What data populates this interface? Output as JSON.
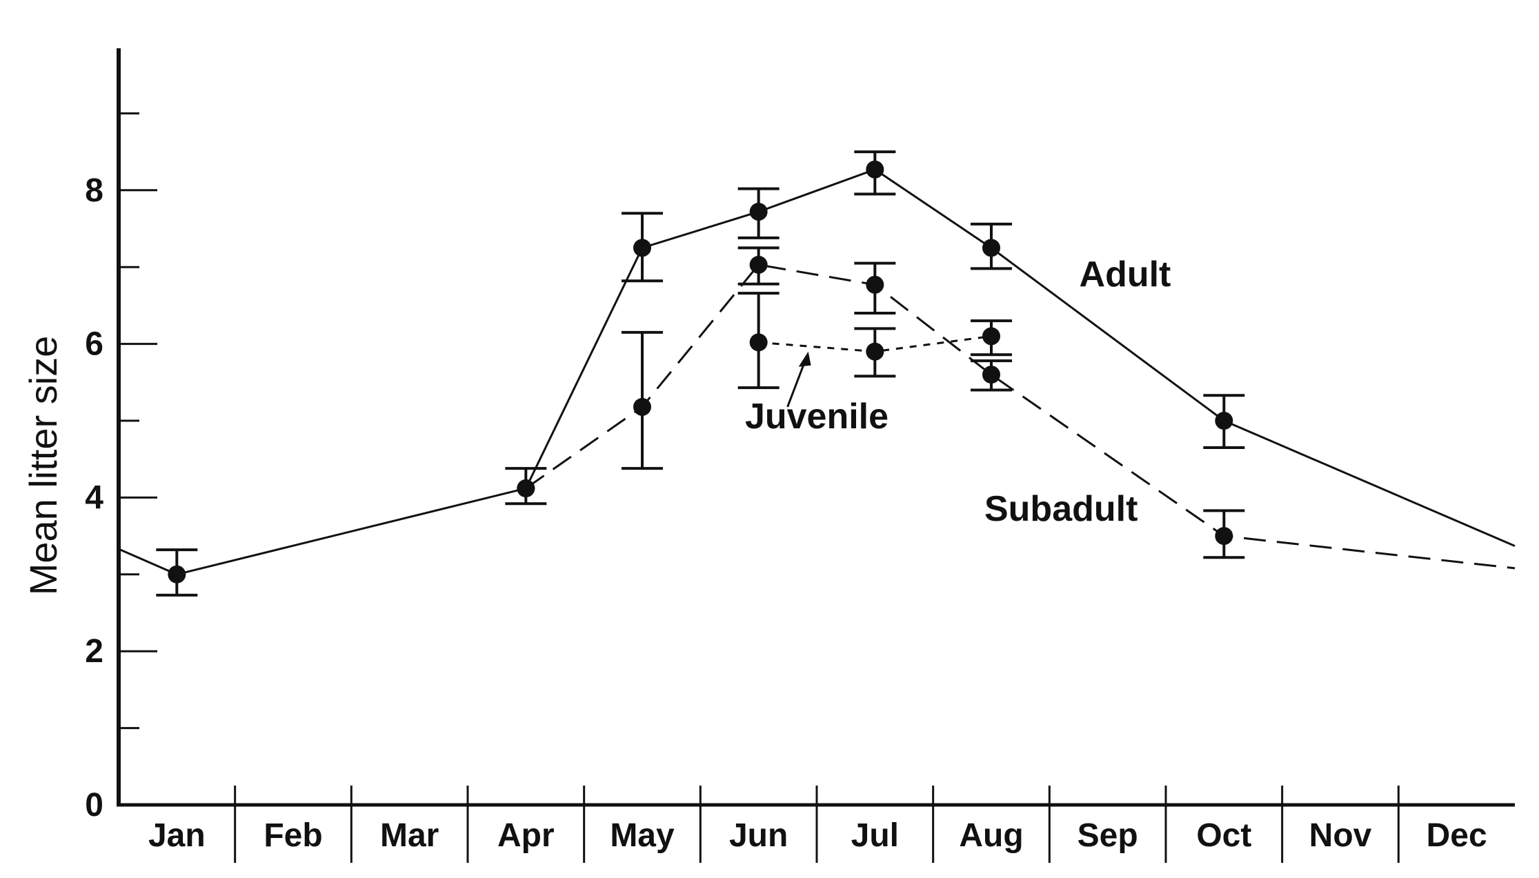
{
  "chart_data": {
    "type": "line",
    "ylabel": "Mean litter size",
    "xlabel": "",
    "ylim": [
      0,
      9
    ],
    "yticks_major": [
      0,
      2,
      4,
      6,
      8
    ],
    "yticks_minor": [
      1,
      3,
      5,
      7,
      9
    ],
    "categories": [
      "Jan",
      "Feb",
      "Mar",
      "Apr",
      "May",
      "Jun",
      "Jul",
      "Aug",
      "Sep",
      "Oct",
      "Nov",
      "Dec"
    ],
    "series": [
      {
        "name": "Adult",
        "line_style": "solid",
        "points": [
          {
            "month": "Jan",
            "x": 0.5,
            "y": 3.0,
            "err_low": 2.73,
            "err_high": 3.32
          },
          {
            "month": "Apr",
            "x": 3.5,
            "y": 4.12,
            "err_low": 3.92,
            "err_high": 4.38
          },
          {
            "month": "May",
            "x": 4.5,
            "y": 7.25,
            "err_low": 6.82,
            "err_high": 7.7
          },
          {
            "month": "Jun",
            "x": 5.5,
            "y": 7.72,
            "err_low": 7.38,
            "err_high": 8.02
          },
          {
            "month": "Jul",
            "x": 6.5,
            "y": 8.27,
            "err_low": 7.95,
            "err_high": 8.5
          },
          {
            "month": "Aug",
            "x": 7.5,
            "y": 7.25,
            "err_low": 6.98,
            "err_high": 7.56
          },
          {
            "month": "Oct",
            "x": 9.5,
            "y": 5.0,
            "err_low": 4.65,
            "err_high": 5.33
          }
        ],
        "line_start": {
          "x": 0.0,
          "y": 3.33
        },
        "line_end": {
          "x": 12.0,
          "y": 3.37
        }
      },
      {
        "name": "Subadult",
        "line_style": "dashed",
        "points": [
          {
            "month": "Apr",
            "x": 3.5,
            "y": 4.12
          },
          {
            "month": "May",
            "x": 4.5,
            "y": 5.18,
            "err_low": 4.38,
            "err_high": 6.15
          },
          {
            "month": "Jun",
            "x": 5.5,
            "y": 7.03,
            "err_low": 6.78,
            "err_high": 7.25
          },
          {
            "month": "Jul",
            "x": 6.5,
            "y": 6.77,
            "err_low": 6.4,
            "err_high": 7.05
          },
          {
            "month": "Aug",
            "x": 7.5,
            "y": 5.6,
            "err_low": 5.4,
            "err_high": 5.78
          },
          {
            "month": "Oct",
            "x": 9.5,
            "y": 3.5,
            "err_low": 3.22,
            "err_high": 3.83
          }
        ],
        "line_end": {
          "x": 12.0,
          "y": 3.08
        }
      },
      {
        "name": "Juvenile",
        "line_style": "dotted",
        "points": [
          {
            "month": "Jun",
            "x": 5.5,
            "y": 6.02,
            "err_low": 5.43,
            "err_high": 6.66
          },
          {
            "month": "Jul",
            "x": 6.5,
            "y": 5.9,
            "err_low": 5.58,
            "err_high": 6.2
          },
          {
            "month": "Aug",
            "x": 7.5,
            "y": 6.1,
            "err_low": 5.86,
            "err_high": 6.3
          }
        ]
      }
    ],
    "annotations": [
      {
        "text": "Adult",
        "x": 8.65,
        "y": 6.75
      },
      {
        "text": "Juvenile",
        "x": 6.0,
        "y": 4.9
      },
      {
        "text": "Subadult",
        "x": 8.1,
        "y": 3.7
      }
    ]
  }
}
